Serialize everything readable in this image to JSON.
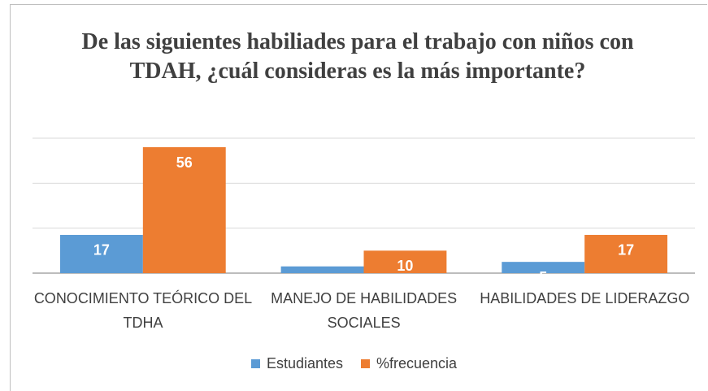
{
  "chart_data": {
    "type": "bar",
    "title": "De las siguientes habiliades para el trabajo  con niños con TDAH, ¿cuál consideras es la más importante?",
    "categories": [
      "CONOCIMIENTO TEÓRICO DEL TDHA",
      "MANEJO DE HABILIDADES SOCIALES",
      "HABILIDADES DE LIDERAZGO"
    ],
    "series": [
      {
        "name": "Estudiantes",
        "color": "#5b9bd5",
        "values": [
          17,
          3,
          5
        ]
      },
      {
        "name": "%frecuencia",
        "color": "#ed7d31",
        "values": [
          56,
          10,
          17
        ]
      }
    ],
    "ylim": [
      0,
      60
    ],
    "yticks": [
      0,
      20,
      40,
      60
    ],
    "grid": true,
    "legend": "bottom"
  }
}
